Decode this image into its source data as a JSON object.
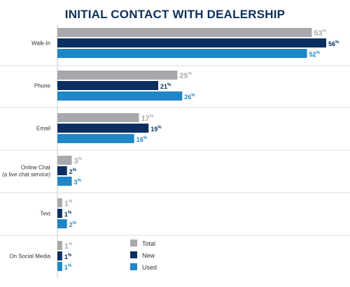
{
  "chart_data": {
    "type": "bar",
    "orientation": "horizontal",
    "title": "INITIAL CONTACT WITH DEALERSHIP",
    "categories": [
      "Walk-In",
      "Phone",
      "Email",
      "Online Chat\n(a live chat service)",
      "Text",
      "On Social Media"
    ],
    "series": [
      {
        "name": "Total",
        "values": [
          53,
          25,
          17,
          3,
          1,
          1
        ],
        "color": "#a7a9ac"
      },
      {
        "name": "New",
        "values": [
          56,
          21,
          19,
          2,
          1,
          1
        ],
        "color": "#0b2f61"
      },
      {
        "name": "Used",
        "values": [
          52,
          26,
          16,
          3,
          2,
          1
        ],
        "color": "#1f86c7"
      }
    ],
    "value_suffix": "%",
    "xlim": [
      0,
      56
    ],
    "grid": false,
    "legend_position": "bottom-center"
  }
}
